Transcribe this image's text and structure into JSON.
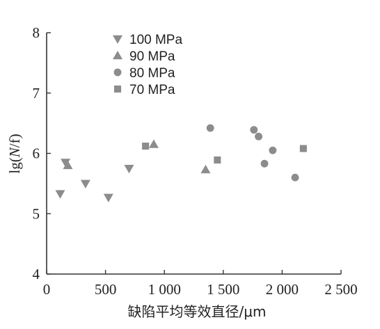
{
  "chart_data": {
    "type": "scatter",
    "title": "",
    "xlabel": "缺陷平均等效直径/μm",
    "ylabel_parts": [
      "lg(",
      "N",
      "/f)"
    ],
    "xlim": [
      0,
      2500
    ],
    "ylim": [
      4,
      8
    ],
    "xticks": [
      0,
      500,
      1000,
      1500,
      2000,
      2500
    ],
    "xtick_labels": [
      "0",
      "500",
      "1 000",
      "1 500",
      "2 000",
      "2 500"
    ],
    "yticks": [
      4,
      5,
      6,
      7,
      8
    ],
    "ytick_labels": [
      "4",
      "5",
      "6",
      "7",
      "8"
    ],
    "grid": false,
    "legend_position": "top-left",
    "marker_color": "#8c8c8c",
    "series": [
      {
        "name": "100 MPa",
        "marker": "triangle-down",
        "x": [
          115,
          160,
          330,
          525,
          700
        ],
        "y": [
          5.33,
          5.85,
          5.5,
          5.27,
          5.75
        ]
      },
      {
        "name": "90 MPa",
        "marker": "triangle-up",
        "x": [
          180,
          910,
          1350
        ],
        "y": [
          5.8,
          6.15,
          5.73
        ]
      },
      {
        "name": "80 MPa",
        "marker": "circle",
        "x": [
          1390,
          1760,
          1800,
          1850,
          1920,
          2110
        ],
        "y": [
          6.42,
          6.39,
          6.28,
          5.83,
          6.05,
          5.6
        ]
      },
      {
        "name": "70 MPa",
        "marker": "square",
        "x": [
          840,
          1450,
          2180
        ],
        "y": [
          6.12,
          5.89,
          6.08
        ]
      }
    ]
  }
}
